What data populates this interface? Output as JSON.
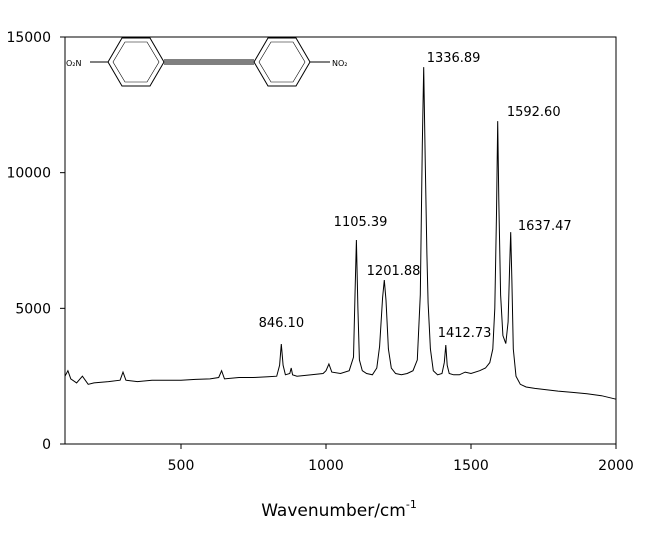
{
  "chart_data": {
    "type": "line",
    "xlabel": {
      "text": "Wavenumber/cm",
      "superscript": "-1"
    },
    "xlim": [
      100,
      2000
    ],
    "xticks": [
      500,
      1000,
      1500,
      2000
    ],
    "ylim": [
      0,
      15000
    ],
    "yticks": [
      0,
      5000,
      10000,
      15000
    ],
    "series": [
      {
        "color": "#000000",
        "x": [
          100,
          110,
          120,
          140,
          160,
          180,
          200,
          250,
          290,
          300,
          310,
          350,
          400,
          450,
          500,
          550,
          600,
          630,
          640,
          650,
          700,
          750,
          800,
          830,
          840,
          846,
          852,
          860,
          875,
          880,
          885,
          900,
          950,
          990,
          1000,
          1010,
          1020,
          1050,
          1080,
          1095,
          1100,
          1105,
          1110,
          1115,
          1125,
          1140,
          1160,
          1175,
          1185,
          1195,
          1201,
          1207,
          1215,
          1225,
          1240,
          1260,
          1280,
          1300,
          1315,
          1325,
          1332,
          1337,
          1342,
          1348,
          1352,
          1356,
          1360,
          1370,
          1385,
          1400,
          1408,
          1413,
          1418,
          1425,
          1440,
          1460,
          1480,
          1500,
          1530,
          1550,
          1565,
          1575,
          1582,
          1588,
          1592,
          1596,
          1602,
          1610,
          1620,
          1628,
          1633,
          1637,
          1641,
          1646,
          1655,
          1670,
          1690,
          1720,
          1760,
          1800,
          1850,
          1900,
          1950,
          2000
        ],
        "values": [
          2500,
          2700,
          2400,
          2250,
          2500,
          2200,
          2250,
          2300,
          2350,
          2650,
          2350,
          2300,
          2350,
          2350,
          2350,
          2380,
          2400,
          2450,
          2700,
          2400,
          2450,
          2450,
          2480,
          2500,
          2900,
          3685,
          2900,
          2550,
          2600,
          2800,
          2550,
          2500,
          2550,
          2600,
          2700,
          2950,
          2650,
          2600,
          2700,
          3200,
          5500,
          7517,
          5000,
          3100,
          2700,
          2600,
          2550,
          2800,
          3600,
          5400,
          6040,
          5300,
          3500,
          2800,
          2600,
          2550,
          2600,
          2700,
          3100,
          5500,
          11000,
          13890,
          10500,
          7000,
          5200,
          4400,
          3500,
          2700,
          2550,
          2600,
          3000,
          3650,
          2900,
          2600,
          2550,
          2550,
          2650,
          2600,
          2700,
          2800,
          3000,
          3500,
          5000,
          8500,
          11900,
          9000,
          5500,
          4000,
          3700,
          4500,
          6500,
          7810,
          6000,
          3500,
          2500,
          2200,
          2100,
          2050,
          2000,
          1950,
          1900,
          1850,
          1780,
          1650
        ]
      }
    ],
    "annotations": [
      {
        "x": 846.1,
        "y": 3685,
        "label": "846.10"
      },
      {
        "x": 1105.39,
        "y": 7517,
        "label": "1105.39"
      },
      {
        "x": 1201.88,
        "y": 6040,
        "label": "1201.88"
      },
      {
        "x": 1336.89,
        "y": 13890,
        "label": "1336.89"
      },
      {
        "x": 1412.73,
        "y": 3650,
        "label": "1412.73"
      },
      {
        "x": 1592.6,
        "y": 11900,
        "label": "1592.60"
      },
      {
        "x": 1637.47,
        "y": 7810,
        "label": "1637.47"
      }
    ],
    "molecule": {
      "left_group": "O₂N",
      "right_group": "NO₂"
    }
  }
}
